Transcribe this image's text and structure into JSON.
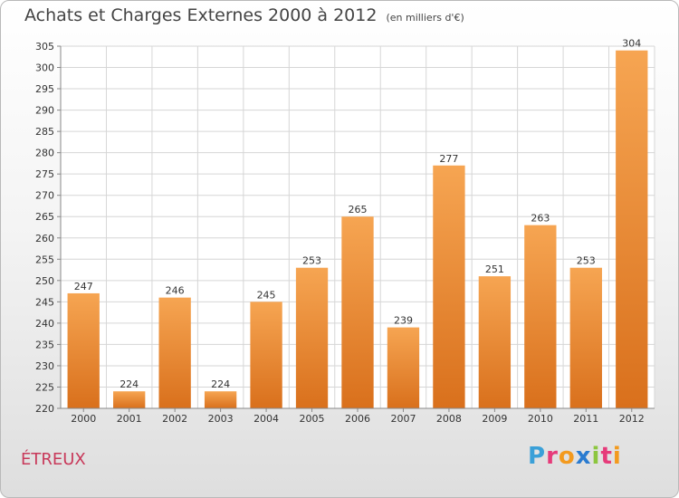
{
  "title": "Achats et Charges Externes 2000 à 2012",
  "subtitle": "(en milliers d'€)",
  "town": "ÉTREUX",
  "logo": {
    "letters": [
      "P",
      "r",
      "o",
      "x",
      "i",
      "t",
      "i"
    ],
    "colors": [
      "#3aa0d8",
      "#e63b7a",
      "#f39a1e",
      "#2a7bd0",
      "#8cc63f",
      "#e63b7a",
      "#f39a1e"
    ]
  },
  "colors": {
    "bar_top": "#f6a552",
    "bar_bottom": "#d9701c",
    "title": "#444444",
    "town": "#c8395a"
  },
  "chart_data": {
    "type": "bar",
    "categories": [
      "2000",
      "2001",
      "2002",
      "2003",
      "2004",
      "2005",
      "2006",
      "2007",
      "2008",
      "2009",
      "2010",
      "2011",
      "2012"
    ],
    "values": [
      247,
      224,
      246,
      224,
      245,
      253,
      265,
      239,
      277,
      251,
      263,
      253,
      304
    ],
    "title": "Achats et Charges Externes 2000 à 2012",
    "subtitle": "(en milliers d'€)",
    "ylim": [
      220,
      305
    ],
    "yticks": [
      220,
      225,
      230,
      235,
      240,
      245,
      250,
      255,
      260,
      265,
      270,
      275,
      280,
      285,
      290,
      295,
      300,
      305
    ],
    "grid": true
  }
}
